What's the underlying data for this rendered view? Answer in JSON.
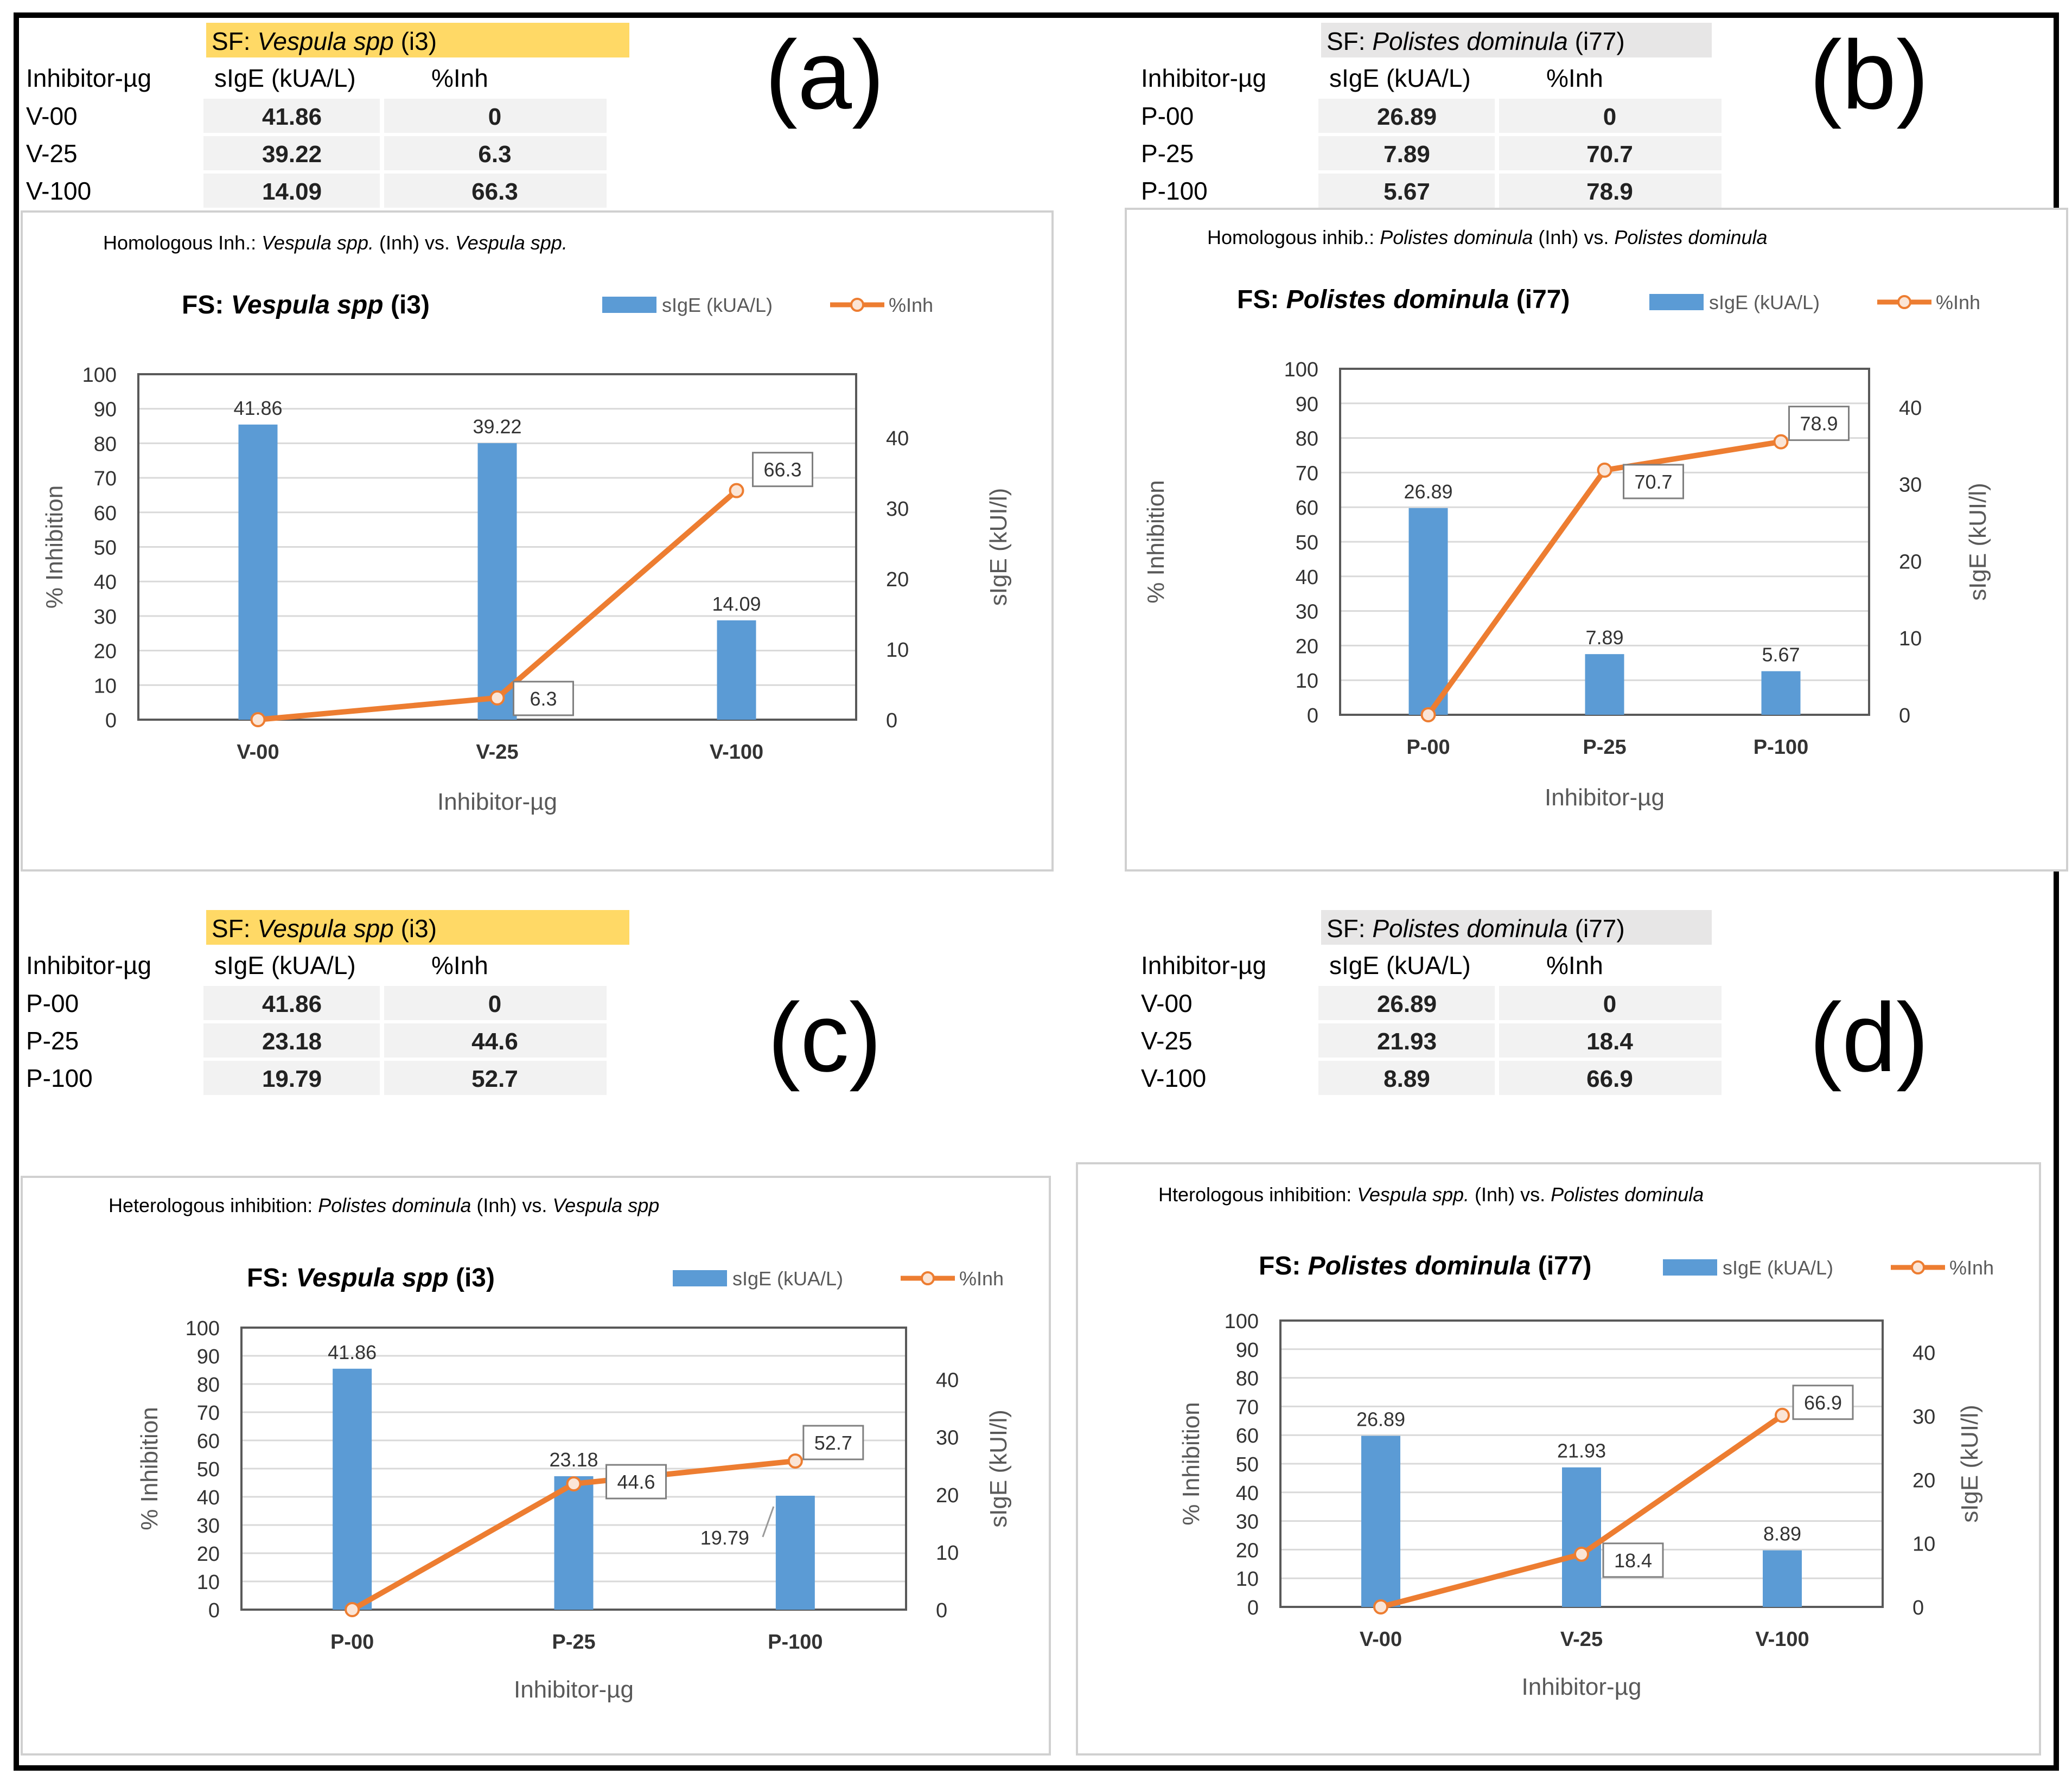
{
  "colors": {
    "bar": "#5b9bd5",
    "line": "#ed7d31",
    "sf_vespula_bg": "#ffd966",
    "sf_polistes_bg": "#e7e6e6",
    "cell_bg": "#f2f2f2",
    "grid": "#d9d9d9",
    "axis": "#595959"
  },
  "panels": [
    {
      "id": "a",
      "letter": "(a)",
      "table": {
        "sf_prefix": "SF: ",
        "sf_species": "Vespula spp",
        "sf_code": " (i3)",
        "headers": [
          "Inhibitor-µg",
          "sIgE (kUA/L)",
          "%Inh"
        ],
        "rows": [
          [
            "V-00",
            "41.86",
            "0"
          ],
          [
            "V-25",
            "39.22",
            "6.3"
          ],
          [
            "V-100",
            "14.09",
            "66.3"
          ]
        ]
      },
      "chart_caption": {
        "prefix": "Homologous Inh.: ",
        "inh_species": "Vespula spp.",
        "mid": " (Inh) vs. ",
        "target_species": "Vespula spp."
      }
    },
    {
      "id": "b",
      "letter": "(b)",
      "table": {
        "sf_prefix": "SF: ",
        "sf_species": "Polistes dominula",
        "sf_code": " (i77)",
        "headers": [
          "Inhibitor-µg",
          "sIgE (kUA/L)",
          "%Inh"
        ],
        "rows": [
          [
            "P-00",
            "26.89",
            "0"
          ],
          [
            "P-25",
            "7.89",
            "70.7"
          ],
          [
            "P-100",
            "5.67",
            "78.9"
          ]
        ]
      },
      "chart_caption": {
        "prefix": "Homologous inhib.: ",
        "inh_species": "Polistes dominula",
        "mid": " (Inh) vs. ",
        "target_species": "Polistes dominula"
      }
    },
    {
      "id": "c",
      "letter": "(c)",
      "table": {
        "sf_prefix": "SF: ",
        "sf_species": "Vespula spp",
        "sf_code": " (i3)",
        "headers": [
          "Inhibitor-µg",
          "sIgE (kUA/L)",
          "%Inh"
        ],
        "rows": [
          [
            "P-00",
            "41.86",
            "0"
          ],
          [
            "P-25",
            "23.18",
            "44.6"
          ],
          [
            "P-100",
            "19.79",
            "52.7"
          ]
        ]
      },
      "chart_caption": {
        "prefix": "Heterologous inhibition: ",
        "inh_species": "Polistes dominula",
        "mid": " (Inh) vs. ",
        "target_species": "Vespula spp"
      }
    },
    {
      "id": "d",
      "letter": "(d)",
      "table": {
        "sf_prefix": "SF: ",
        "sf_species": "Polistes dominula",
        "sf_code": " (i77)",
        "headers": [
          "Inhibitor-µg",
          "sIgE (kUA/L)",
          "%Inh"
        ],
        "rows": [
          [
            "V-00",
            "26.89",
            "0"
          ],
          [
            "V-25",
            "21.93",
            "18.4"
          ],
          [
            "V-100",
            "8.89",
            "66.9"
          ]
        ]
      },
      "chart_caption": {
        "prefix": "Hterologous inhibition: ",
        "inh_species": "Vespula spp.",
        "mid": " (Inh) vs. ",
        "target_species": "Polistes dominula"
      }
    }
  ],
  "chart_data": [
    {
      "panel": "a",
      "type": "bar",
      "title_prefix": "FS: ",
      "title_species": "Vespula spp",
      "title_code": " (i3)",
      "categories": [
        "V-00",
        "V-25",
        "V-100"
      ],
      "series": [
        {
          "name": "sIgE (kUA/L)",
          "kind": "bar",
          "axis": "right",
          "values": [
            41.86,
            39.22,
            14.09
          ],
          "labels": [
            "41.86",
            "39.22",
            "14.09"
          ]
        },
        {
          "name": "%Inh",
          "kind": "line",
          "axis": "left",
          "values": [
            0,
            6.3,
            66.3
          ],
          "labels": [
            "",
            "6.3",
            "66.3"
          ]
        }
      ],
      "xlabel": "Inhibitor-µg",
      "ylabel": "% Inhibition",
      "y2label": "sIgE (kUI/l)",
      "ylim": [
        0,
        100
      ],
      "y2lim": [
        0,
        49
      ],
      "yticks": [
        0,
        10,
        20,
        30,
        40,
        50,
        60,
        70,
        80,
        90,
        100
      ],
      "y2ticks": [
        0,
        10,
        20,
        30,
        40
      ],
      "legend": "top-right"
    },
    {
      "panel": "b",
      "type": "bar",
      "title_prefix": "FS: ",
      "title_species": "Polistes dominula",
      "title_code": " (i77)",
      "categories": [
        "P-00",
        "P-25",
        "P-100"
      ],
      "series": [
        {
          "name": "sIgE (kUA/L)",
          "kind": "bar",
          "axis": "right",
          "values": [
            26.89,
            7.89,
            5.67
          ],
          "labels": [
            "26.89",
            "7.89",
            "5.67"
          ]
        },
        {
          "name": "%Inh",
          "kind": "line",
          "axis": "left",
          "values": [
            0,
            70.7,
            78.9
          ],
          "labels": [
            "",
            "70.7",
            "78.9"
          ]
        }
      ],
      "xlabel": "Inhibitor-µg",
      "ylabel": "% Inhibition",
      "y2label": "sIgE (kUI/l)",
      "ylim": [
        0,
        100
      ],
      "y2lim": [
        0,
        45
      ],
      "yticks": [
        0,
        10,
        20,
        30,
        40,
        50,
        60,
        70,
        80,
        90,
        100
      ],
      "y2ticks": [
        0,
        10,
        20,
        30,
        40
      ],
      "legend": "top-right"
    },
    {
      "panel": "c",
      "type": "bar",
      "title_prefix": "FS: ",
      "title_species": "Vespula spp",
      "title_code": " (i3)",
      "categories": [
        "P-00",
        "P-25",
        "P-100"
      ],
      "series": [
        {
          "name": "sIgE (kUA/L)",
          "kind": "bar",
          "axis": "right",
          "values": [
            41.86,
            23.18,
            19.79
          ],
          "labels": [
            "41.86",
            "23.18",
            "19.79"
          ]
        },
        {
          "name": "%Inh",
          "kind": "line",
          "axis": "left",
          "values": [
            0,
            44.6,
            52.7
          ],
          "labels": [
            "",
            "44.6",
            "52.7"
          ]
        }
      ],
      "xlabel": "Inhibitor-µg",
      "ylabel": "% Inhibition",
      "y2label": "sIgE (kUI/l)",
      "ylim": [
        0,
        100
      ],
      "y2lim": [
        0,
        49
      ],
      "yticks": [
        0,
        10,
        20,
        30,
        40,
        50,
        60,
        70,
        80,
        90,
        100
      ],
      "y2ticks": [
        0,
        10,
        20,
        30,
        40
      ],
      "legend": "top-right"
    },
    {
      "panel": "d",
      "type": "bar",
      "title_prefix": "FS: ",
      "title_species": "Polistes dominula",
      "title_code": " (i77)",
      "categories": [
        "V-00",
        "V-25",
        "V-100"
      ],
      "series": [
        {
          "name": "sIgE (kUA/L)",
          "kind": "bar",
          "axis": "right",
          "values": [
            26.89,
            21.93,
            8.89
          ],
          "labels": [
            "26.89",
            "21.93",
            "8.89"
          ]
        },
        {
          "name": "%Inh",
          "kind": "line",
          "axis": "left",
          "values": [
            0,
            18.4,
            66.9
          ],
          "labels": [
            "",
            "18.4",
            "66.9"
          ]
        }
      ],
      "xlabel": "Inhibitor-µg",
      "ylabel": "% Inhibition",
      "y2label": "sIgE (kUI/l)",
      "ylim": [
        0,
        100
      ],
      "y2lim": [
        0,
        45
      ],
      "yticks": [
        0,
        10,
        20,
        30,
        40,
        50,
        60,
        70,
        80,
        90,
        100
      ],
      "y2ticks": [
        0,
        10,
        20,
        30,
        40
      ],
      "legend": "top-right"
    }
  ]
}
